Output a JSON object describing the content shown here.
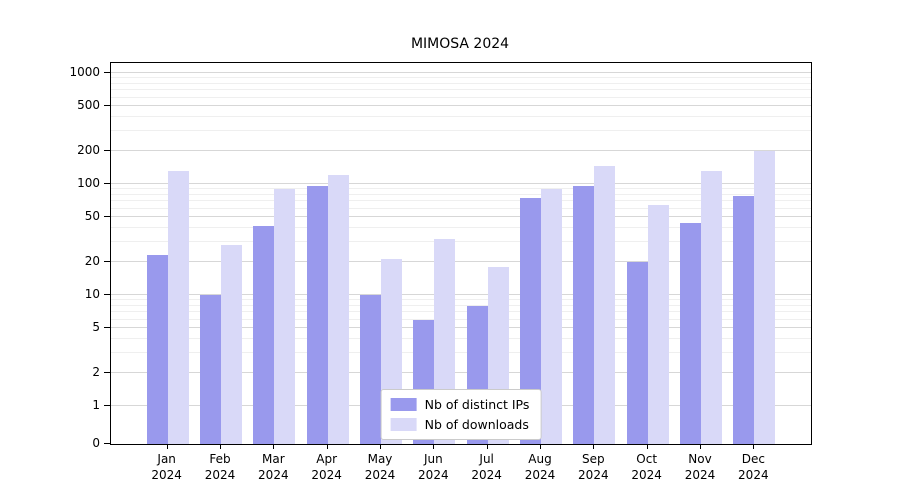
{
  "chart_data": {
    "type": "bar",
    "title": "MIMOSA 2024",
    "categories": [
      "Jan 2024",
      "Feb 2024",
      "Mar 2024",
      "Apr 2024",
      "May 2024",
      "Jun 2024",
      "Jul 2024",
      "Aug 2024",
      "Sep 2024",
      "Oct 2024",
      "Nov 2024",
      "Dec 2024"
    ],
    "series": [
      {
        "name": "Nb of distinct IPs",
        "color": "#9999ed",
        "values": [
          23,
          10,
          42,
          95,
          10,
          6,
          8,
          75,
          95,
          20,
          45,
          78
        ]
      },
      {
        "name": "Nb of downloads",
        "color": "#d9d9f8",
        "values": [
          130,
          28,
          90,
          120,
          21,
          32,
          18,
          90,
          145,
          65,
          130,
          200
        ]
      }
    ],
    "xlabel": "",
    "ylabel": "",
    "yscale": "symlog",
    "ylim": [
      0,
      1000
    ],
    "yticks": [
      0,
      1,
      2,
      5,
      10,
      20,
      50,
      100,
      200,
      500,
      1000
    ],
    "minor_yticks": [
      3,
      4,
      6,
      7,
      8,
      9,
      30,
      40,
      60,
      70,
      80,
      90,
      300,
      400,
      600,
      700,
      800,
      900
    ],
    "grid": true,
    "legend_position": "lower center"
  }
}
